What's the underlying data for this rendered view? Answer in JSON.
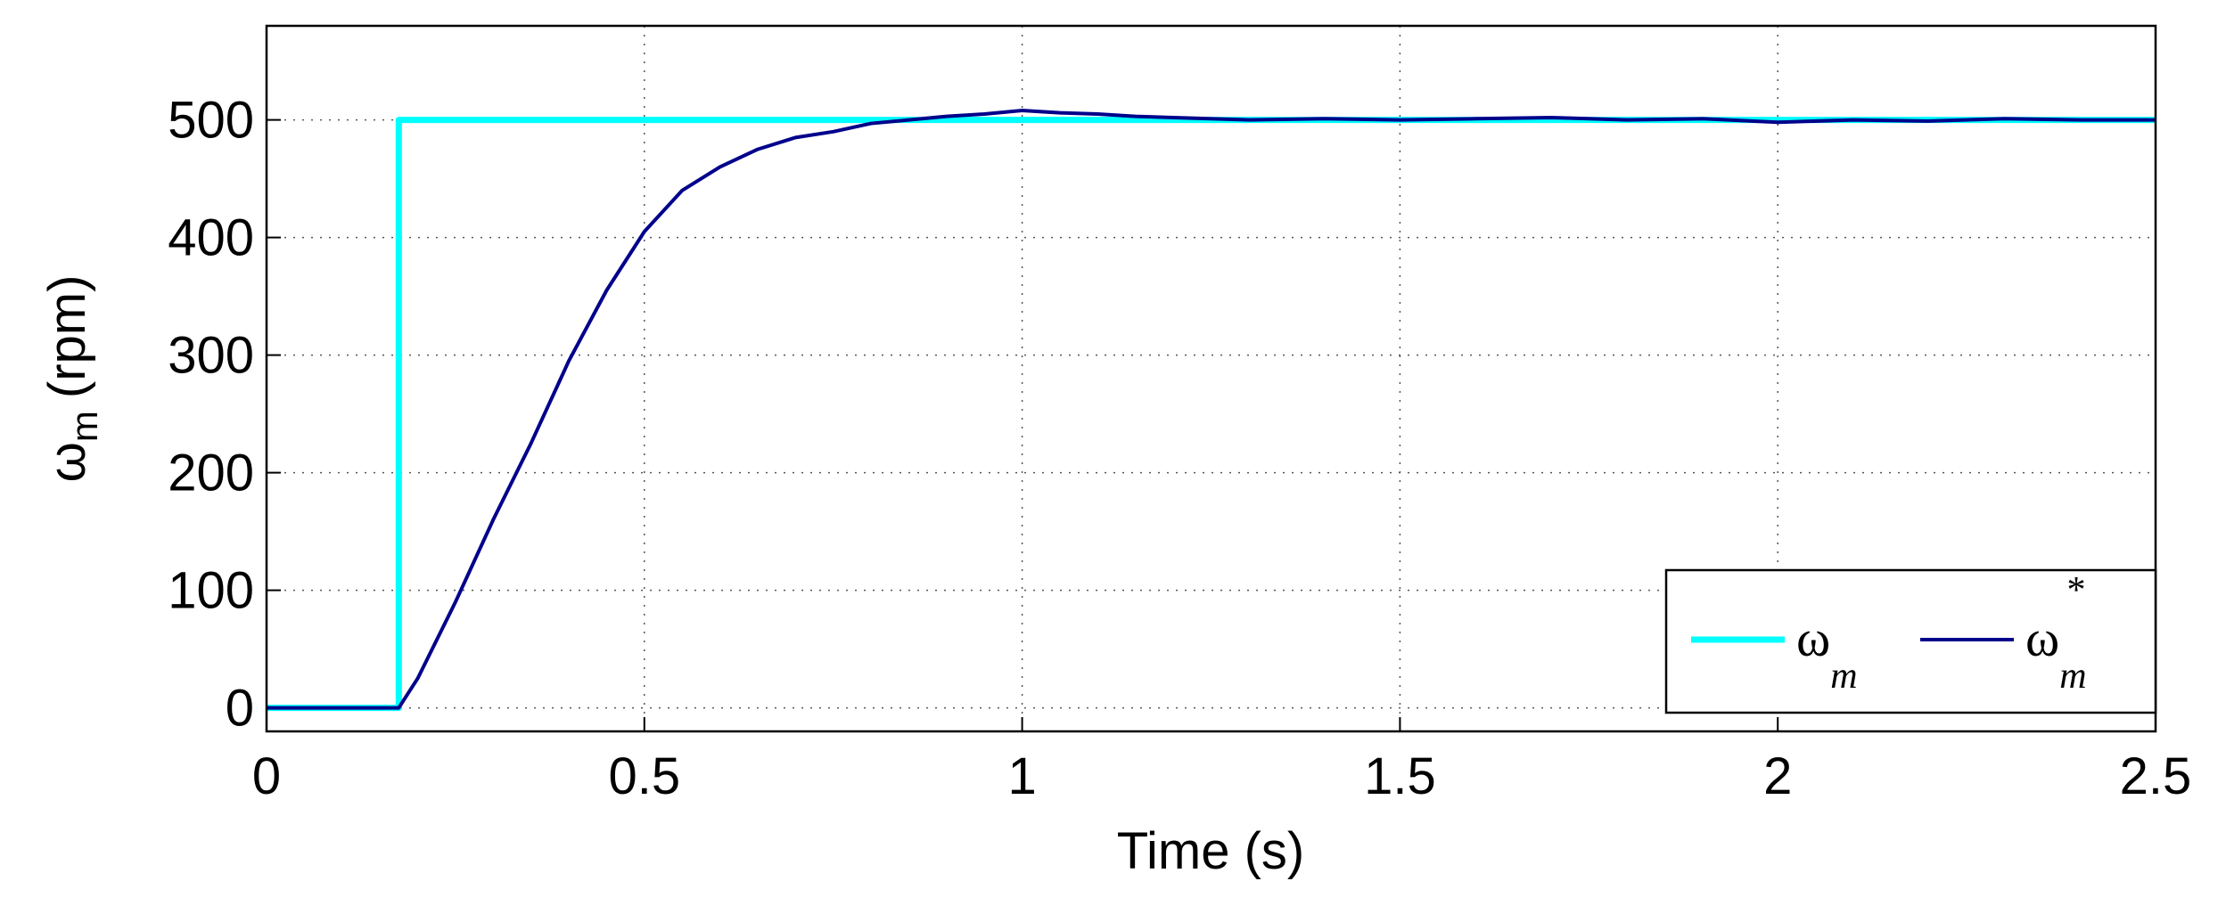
{
  "chart_data": {
    "type": "line",
    "xlabel": "Time (s)",
    "ylabel": "ω",
    "ylabel_sub": "m",
    "ylabel_unit": "(rpm)",
    "xlim": [
      0,
      2.5
    ],
    "xticks": [
      0,
      0.5,
      1,
      1.5,
      2,
      2.5
    ],
    "ylim": [
      -20,
      580
    ],
    "yticks": [
      0,
      100,
      200,
      300,
      400,
      500
    ],
    "grid": true,
    "legend": "lower right",
    "series": [
      {
        "name": "ω",
        "sub": "m",
        "color": "#00ffff",
        "x": [
          0,
          0.175,
          0.175,
          2.5
        ],
        "values": [
          0,
          0,
          500,
          500
        ]
      },
      {
        "name": "ω",
        "sub": "m",
        "sup": "*",
        "color": "#00008b",
        "x": [
          0,
          0.175,
          0.2,
          0.25,
          0.3,
          0.35,
          0.4,
          0.45,
          0.5,
          0.55,
          0.6,
          0.65,
          0.7,
          0.75,
          0.8,
          0.85,
          0.9,
          0.95,
          1.0,
          1.05,
          1.1,
          1.15,
          1.2,
          1.3,
          1.4,
          1.5,
          1.6,
          1.7,
          1.8,
          1.9,
          2.0,
          2.1,
          2.2,
          2.3,
          2.4,
          2.5
        ],
        "values": [
          0,
          0,
          25,
          90,
          160,
          225,
          295,
          355,
          405,
          440,
          460,
          475,
          485,
          490,
          497,
          500,
          503,
          505,
          508,
          506,
          505,
          503,
          502,
          500,
          501,
          500,
          501,
          502,
          500,
          501,
          498,
          500,
          499,
          501,
          500,
          500
        ]
      }
    ]
  }
}
